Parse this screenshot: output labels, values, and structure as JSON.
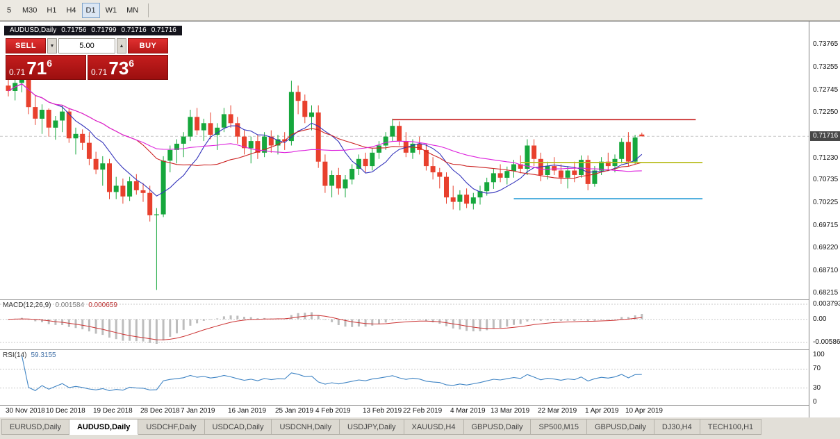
{
  "toolbar": {
    "timeframes": [
      "5",
      "M30",
      "H1",
      "H4",
      "D1",
      "W1",
      "MN"
    ],
    "active": "D1"
  },
  "chart_title": {
    "symbol": "AUDUSD,Daily",
    "open": "0.71756",
    "high": "0.71799",
    "low": "0.71716",
    "close": "0.71716"
  },
  "trade_panel": {
    "sell_label": "SELL",
    "buy_label": "BUY",
    "volume": "5.00",
    "volume_down_icon": "▼",
    "volume_up_icon": "▲",
    "sell_price": {
      "prefix": "0.71",
      "big": "71",
      "sup": "6"
    },
    "buy_price": {
      "prefix": "0.71",
      "big": "73",
      "sup": "6"
    }
  },
  "price_scale": {
    "labels": [
      "0.73765",
      "0.73255",
      "0.72745",
      "0.72250",
      "0.71740",
      "0.71230",
      "0.70735",
      "0.70225",
      "0.69715",
      "0.69220",
      "0.68710",
      "0.68215"
    ],
    "current": "0.71716"
  },
  "macd": {
    "title": "MACD(12,26,9)",
    "main": "0.001584",
    "signal": "0.000659",
    "scale_max": "0.003793",
    "scale_zero": "0.00",
    "scale_min": "-0.005864"
  },
  "rsi": {
    "title": "RSI(14)",
    "value": "59.3155",
    "levels": [
      "100",
      "70",
      "30",
      "0"
    ]
  },
  "time_axis": [
    {
      "label": "30 Nov 2018",
      "index": 0
    },
    {
      "label": "10 Dec 2018",
      "index": 6
    },
    {
      "label": "19 Dec 2018",
      "index": 13
    },
    {
      "label": "28 Dec 2018",
      "index": 20
    },
    {
      "label": "7 Jan 2019",
      "index": 26
    },
    {
      "label": "16 Jan 2019",
      "index": 33
    },
    {
      "label": "25 Jan 2019",
      "index": 40
    },
    {
      "label": "4 Feb 2019",
      "index": 46
    },
    {
      "label": "13 Feb 2019",
      "index": 53
    },
    {
      "label": "22 Feb 2019",
      "index": 59
    },
    {
      "label": "4 Mar 2019",
      "index": 66
    },
    {
      "label": "13 Mar 2019",
      "index": 72
    },
    {
      "label": "22 Mar 2019",
      "index": 79
    },
    {
      "label": "1 Apr 2019",
      "index": 86
    },
    {
      "label": "10 Apr 2019",
      "index": 92
    }
  ],
  "tabs": [
    {
      "label": "EURUSD,Daily",
      "active": false
    },
    {
      "label": "AUDUSD,Daily",
      "active": true
    },
    {
      "label": "USDCHF,Daily",
      "active": false
    },
    {
      "label": "USDCAD,Daily",
      "active": false
    },
    {
      "label": "USDCNH,Daily",
      "active": false
    },
    {
      "label": "USDJPY,Daily",
      "active": false
    },
    {
      "label": "XAUUSD,H4",
      "active": false
    },
    {
      "label": "GBPUSD,Daily",
      "active": false
    },
    {
      "label": "SP500,M15",
      "active": false
    },
    {
      "label": "GBPUSD,Daily",
      "active": false
    },
    {
      "label": "DJ30,H4",
      "active": false
    },
    {
      "label": "TECH100,H1",
      "active": false
    }
  ],
  "chart_data": {
    "type": "candlestick",
    "symbol": "AUDUSD",
    "period": "Daily",
    "ohlc_last": {
      "open": 0.71756,
      "high": 0.71799,
      "low": 0.71716,
      "close": 0.71716
    },
    "y_range": [
      0.681,
      0.7405
    ],
    "price_axis_ticks": [
      0.73765,
      0.73255,
      0.72745,
      0.7225,
      0.7174,
      0.7123,
      0.70735,
      0.70225,
      0.69715,
      0.6922,
      0.6871,
      0.68215
    ],
    "candles": [
      [
        0.7285,
        0.7309,
        0.7261,
        0.7273
      ],
      [
        0.7273,
        0.7299,
        0.7252,
        0.7291
      ],
      [
        0.7291,
        0.7311,
        0.727,
        0.7303
      ],
      [
        0.7303,
        0.7307,
        0.7221,
        0.7237
      ],
      [
        0.7237,
        0.7262,
        0.7197,
        0.7211
      ],
      [
        0.7211,
        0.7243,
        0.7177,
        0.7231
      ],
      [
        0.7231,
        0.7234,
        0.7171,
        0.7191
      ],
      [
        0.7191,
        0.7217,
        0.7164,
        0.7207
      ],
      [
        0.7207,
        0.7241,
        0.7181,
        0.7227
      ],
      [
        0.7227,
        0.7235,
        0.7157,
        0.7167
      ],
      [
        0.7167,
        0.7191,
        0.7131,
        0.7177
      ],
      [
        0.7177,
        0.7187,
        0.7141,
        0.7157
      ],
      [
        0.7157,
        0.7181,
        0.7107,
        0.7121
      ],
      [
        0.7121,
        0.7137,
        0.7087,
        0.7097
      ],
      [
        0.7097,
        0.7127,
        0.7061,
        0.7111
      ],
      [
        0.7111,
        0.7121,
        0.7031,
        0.7047
      ],
      [
        0.7047,
        0.7081,
        0.7031,
        0.7061
      ],
      [
        0.7061,
        0.7077,
        0.7021,
        0.7037
      ],
      [
        0.7037,
        0.7081,
        0.7027,
        0.7071
      ],
      [
        0.7071,
        0.7087,
        0.7041,
        0.7051
      ],
      [
        0.7051,
        0.7067,
        0.7025,
        0.7045
      ],
      [
        0.7045,
        0.7061,
        0.6981,
        0.6995
      ],
      [
        0.6995,
        0.7011,
        0.6828,
        0.6997
      ],
      [
        0.6997,
        0.7127,
        0.6991,
        0.7117
      ],
      [
        0.7117,
        0.7151,
        0.7091,
        0.7141
      ],
      [
        0.7141,
        0.7165,
        0.7111,
        0.7155
      ],
      [
        0.7155,
        0.7181,
        0.7125,
        0.7171
      ],
      [
        0.7171,
        0.7231,
        0.7161,
        0.7215
      ],
      [
        0.7215,
        0.7235,
        0.7175,
        0.7185
      ],
      [
        0.7185,
        0.7211,
        0.7161,
        0.7201
      ],
      [
        0.7201,
        0.7225,
        0.7165,
        0.7175
      ],
      [
        0.7175,
        0.7201,
        0.7141,
        0.7191
      ],
      [
        0.7191,
        0.7235,
        0.7181,
        0.7221
      ],
      [
        0.7221,
        0.7241,
        0.7191,
        0.7201
      ],
      [
        0.7201,
        0.7215,
        0.7155,
        0.7171
      ],
      [
        0.7171,
        0.7185,
        0.7131,
        0.7145
      ],
      [
        0.7145,
        0.7171,
        0.7111,
        0.7161
      ],
      [
        0.7161,
        0.7175,
        0.7121,
        0.7135
      ],
      [
        0.7135,
        0.7181,
        0.7125,
        0.7171
      ],
      [
        0.7171,
        0.7185,
        0.7135,
        0.7151
      ],
      [
        0.7151,
        0.7175,
        0.7131,
        0.7165
      ],
      [
        0.7165,
        0.7181,
        0.7141,
        0.7161
      ],
      [
        0.7161,
        0.7296,
        0.7151,
        0.7271
      ],
      [
        0.7271,
        0.7285,
        0.7221,
        0.7251
      ],
      [
        0.7251,
        0.7265,
        0.7201,
        0.7215
      ],
      [
        0.7215,
        0.7241,
        0.7185,
        0.7225
      ],
      [
        0.7225,
        0.7241,
        0.7101,
        0.7115
      ],
      [
        0.7115,
        0.7131,
        0.7045,
        0.7061
      ],
      [
        0.7061,
        0.7095,
        0.7035,
        0.7085
      ],
      [
        0.7085,
        0.7101,
        0.7041,
        0.7055
      ],
      [
        0.7055,
        0.7085,
        0.7035,
        0.7075
      ],
      [
        0.7075,
        0.7109,
        0.7064,
        0.7099
      ],
      [
        0.7099,
        0.7131,
        0.7085,
        0.7121
      ],
      [
        0.7121,
        0.7135,
        0.7091,
        0.7105
      ],
      [
        0.7105,
        0.7145,
        0.7095,
        0.7135
      ],
      [
        0.7135,
        0.7161,
        0.7121,
        0.7151
      ],
      [
        0.7151,
        0.7181,
        0.7141,
        0.7171
      ],
      [
        0.7171,
        0.7211,
        0.7161,
        0.7195
      ],
      [
        0.7195,
        0.7205,
        0.7151,
        0.7161
      ],
      [
        0.7161,
        0.7181,
        0.7125,
        0.7135
      ],
      [
        0.7135,
        0.7165,
        0.7121,
        0.7155
      ],
      [
        0.7155,
        0.7171,
        0.7131,
        0.7141
      ],
      [
        0.7141,
        0.7155,
        0.7095,
        0.7105
      ],
      [
        0.7105,
        0.7125,
        0.7075,
        0.7091
      ],
      [
        0.7091,
        0.7101,
        0.7055,
        0.7081
      ],
      [
        0.7081,
        0.7091,
        0.7021,
        0.7035
      ],
      [
        0.7035,
        0.7061,
        0.7008,
        0.7025
      ],
      [
        0.7025,
        0.7051,
        0.7006,
        0.7041
      ],
      [
        0.7041,
        0.7055,
        0.7011,
        0.7021
      ],
      [
        0.7021,
        0.7045,
        0.7008,
        0.7035
      ],
      [
        0.7035,
        0.7061,
        0.7019,
        0.7049
      ],
      [
        0.7049,
        0.7079,
        0.7039,
        0.7069
      ],
      [
        0.7069,
        0.7099,
        0.7054,
        0.7089
      ],
      [
        0.7089,
        0.7109,
        0.7069,
        0.7079
      ],
      [
        0.7079,
        0.7104,
        0.7064,
        0.7094
      ],
      [
        0.7094,
        0.7119,
        0.7079,
        0.7109
      ],
      [
        0.7109,
        0.7129,
        0.7089,
        0.7099
      ],
      [
        0.7099,
        0.7165,
        0.7085,
        0.7151
      ],
      [
        0.7151,
        0.7165,
        0.7105,
        0.7121
      ],
      [
        0.7121,
        0.7135,
        0.7071,
        0.7085
      ],
      [
        0.7085,
        0.7115,
        0.7075,
        0.7105
      ],
      [
        0.7105,
        0.7125,
        0.7085,
        0.7095
      ],
      [
        0.7095,
        0.7109,
        0.7065,
        0.7079
      ],
      [
        0.7079,
        0.7105,
        0.7055,
        0.7095
      ],
      [
        0.7095,
        0.7115,
        0.7069,
        0.7085
      ],
      [
        0.7085,
        0.7129,
        0.7079,
        0.7119
      ],
      [
        0.7119,
        0.7129,
        0.7051,
        0.7065
      ],
      [
        0.7065,
        0.7105,
        0.7059,
        0.7095
      ],
      [
        0.7095,
        0.7125,
        0.7085,
        0.7115
      ],
      [
        0.7115,
        0.7135,
        0.7095,
        0.7105
      ],
      [
        0.7105,
        0.7131,
        0.7091,
        0.7121
      ],
      [
        0.7121,
        0.7167,
        0.7111,
        0.7159
      ],
      [
        0.7159,
        0.7181,
        0.7105,
        0.7115
      ],
      [
        0.7115,
        0.7175,
        0.7109,
        0.7169
      ],
      [
        0.71756,
        0.71799,
        0.71716,
        0.71716
      ]
    ],
    "moving_averages": [
      {
        "period": 8,
        "color": "#3333bb",
        "name": "ma-fast"
      },
      {
        "period": 20,
        "color": "#cc2222",
        "name": "ma-medium"
      },
      {
        "period": 34,
        "color": "#dd22dd",
        "name": "ma-slow"
      }
    ],
    "hlines": [
      {
        "price": 0.7209,
        "from_index": 57,
        "to_index": 102,
        "color": "#cc3333",
        "name": "resistance-line"
      },
      {
        "price": 0.7113,
        "from_index": 76,
        "to_index": 103,
        "color": "#b8bd1e",
        "name": "pivot-line"
      },
      {
        "price": 0.7032,
        "from_index": 75,
        "to_index": 103,
        "color": "#2f9fd8",
        "name": "support-line"
      }
    ],
    "colors": {
      "up": "#16a73c",
      "down": "#e8402d",
      "macd_hist": "#bdbdbd",
      "macd_signal": "#cc3333",
      "rsi": "#3f84c4",
      "bid_line": "#c8c8c8"
    },
    "macd_scale": {
      "max": 0.003793,
      "min": -0.005864
    },
    "indicators": {
      "macd": {
        "fast": 12,
        "slow": 26,
        "signal": 9,
        "last_main": 0.001584,
        "last_signal": 0.000659
      },
      "rsi": {
        "period": 14,
        "levels": [
          70,
          30
        ],
        "last": 59.3155
      }
    }
  }
}
